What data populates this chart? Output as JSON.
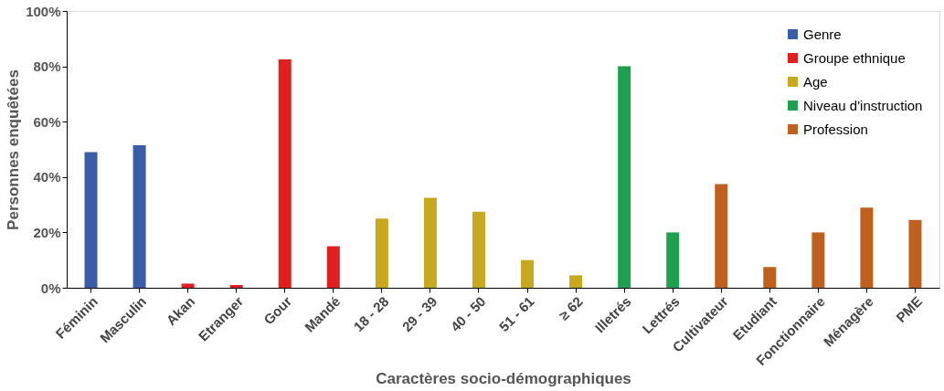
{
  "chart_data": {
    "type": "bar",
    "xlabel": "Caractères socio-démographiques",
    "ylabel": "Personnes enquêtées",
    "categories": [
      "Féminin",
      "Masculin",
      "Akan",
      "Etranger",
      "Gour",
      "Mandé",
      "18 - 28",
      "29 - 39",
      "40 - 50",
      "51 - 61",
      "≥ 62",
      "Illetrés",
      "Lettrés",
      "Cultivateur",
      "Etudiant",
      "Fonctionnaire",
      "Ménagère",
      "PME"
    ],
    "series": [
      {
        "name": "Genre",
        "color": "#3a5da8",
        "values": [
          49,
          51.5,
          null,
          null,
          null,
          null,
          null,
          null,
          null,
          null,
          null,
          null,
          null,
          null,
          null,
          null,
          null,
          null
        ]
      },
      {
        "name": "Groupe ethnique",
        "color": "#e0201e",
        "values": [
          null,
          null,
          1.5,
          1,
          82.5,
          15,
          null,
          null,
          null,
          null,
          null,
          null,
          null,
          null,
          null,
          null,
          null,
          null
        ]
      },
      {
        "name": "Age",
        "color": "#c8a81e",
        "values": [
          null,
          null,
          null,
          null,
          null,
          null,
          25,
          32.5,
          27.5,
          10,
          4.5,
          null,
          null,
          null,
          null,
          null,
          null,
          null
        ]
      },
      {
        "name": "Niveau d'instruction",
        "color": "#1fa050",
        "values": [
          null,
          null,
          null,
          null,
          null,
          null,
          null,
          null,
          null,
          null,
          null,
          80,
          20,
          null,
          null,
          null,
          null,
          null
        ]
      },
      {
        "name": "Profession",
        "color": "#c0601e",
        "values": [
          null,
          null,
          null,
          null,
          null,
          null,
          null,
          null,
          null,
          null,
          null,
          null,
          null,
          37.5,
          7.5,
          20,
          29,
          24.5
        ]
      }
    ],
    "ylim": [
      0,
      100
    ],
    "yticks": [
      {
        "value": 0,
        "label": "0%"
      },
      {
        "value": 20,
        "label": "20%"
      },
      {
        "value": 40,
        "label": "40%"
      },
      {
        "value": 60,
        "label": "60%"
      },
      {
        "value": 80,
        "label": "80%"
      },
      {
        "value": 100,
        "label": "100%"
      }
    ],
    "grid": false,
    "legend": "top right"
  }
}
